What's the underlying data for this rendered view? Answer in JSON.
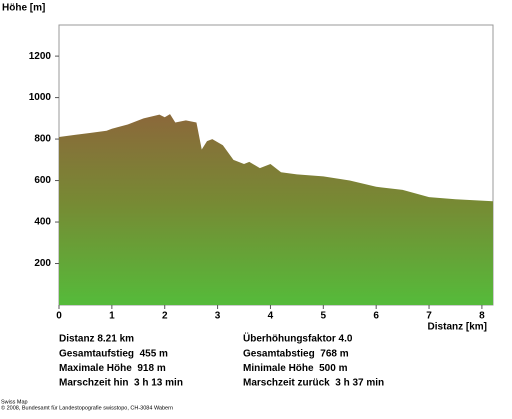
{
  "chart_data": {
    "type": "area",
    "ylabel": "Höhe [m]",
    "xlabel": "Distanz [km]",
    "x": [
      0,
      0.3,
      0.6,
      0.9,
      1.0,
      1.3,
      1.6,
      1.9,
      2.0,
      2.1,
      2.2,
      2.4,
      2.6,
      2.7,
      2.8,
      2.9,
      3.1,
      3.3,
      3.5,
      3.6,
      3.8,
      4.0,
      4.2,
      4.5,
      5.0,
      5.5,
      6.0,
      6.5,
      7.0,
      7.5,
      8.21
    ],
    "values": [
      810,
      820,
      830,
      840,
      850,
      870,
      900,
      918,
      905,
      920,
      880,
      890,
      880,
      750,
      790,
      800,
      770,
      700,
      680,
      690,
      660,
      680,
      640,
      630,
      620,
      600,
      570,
      555,
      520,
      510,
      500
    ],
    "xlim": [
      0,
      8.21
    ],
    "ylim": [
      0,
      1350
    ],
    "xticks": [
      0,
      1,
      2,
      3,
      4,
      5,
      6,
      7,
      8
    ],
    "yticks": [
      200,
      400,
      600,
      800,
      1000,
      1200
    ]
  },
  "stats": [
    [
      "Distanz 8.21 km",
      "Überhöhungsfaktor 4.0"
    ],
    [
      "Gesamtaufstieg  455 m",
      "Gesamtabstieg  768 m"
    ],
    [
      "Maximale Höhe  918 m",
      "Minimale Höhe  500 m"
    ],
    [
      "Marschzeit hin  3 h 13 min",
      "Marschzeit zurück  3 h 37 min"
    ]
  ],
  "footer": [
    "Swiss Map",
    "© 2008, Bundesamt für Landestopografie swisstopo, CH-3084 Wabern"
  ]
}
